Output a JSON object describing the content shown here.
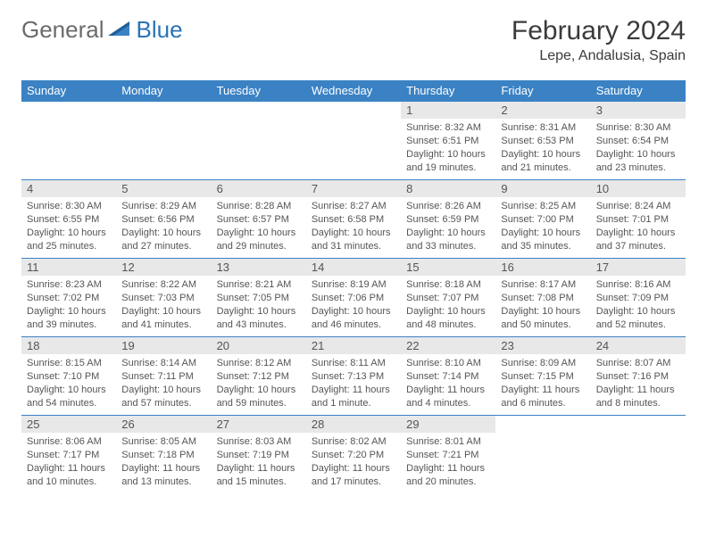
{
  "brand": {
    "part1": "General",
    "part2": "Blue"
  },
  "title": "February 2024",
  "location": "Lepe, Andalusia, Spain",
  "style": {
    "header_bg": "#3b82c4",
    "header_text": "#ffffff",
    "daynum_bg": "#e8e8e8",
    "text_color": "#555555",
    "border_color": "#3b82c4",
    "title_fontsize": 30,
    "location_fontsize": 16,
    "header_fontsize": 13,
    "body_fontsize": 11
  },
  "weekdays": [
    "Sunday",
    "Monday",
    "Tuesday",
    "Wednesday",
    "Thursday",
    "Friday",
    "Saturday"
  ],
  "weeks": [
    [
      null,
      null,
      null,
      null,
      {
        "n": "1",
        "sr": "Sunrise: 8:32 AM",
        "ss": "Sunset: 6:51 PM",
        "dl": "Daylight: 10 hours and 19 minutes."
      },
      {
        "n": "2",
        "sr": "Sunrise: 8:31 AM",
        "ss": "Sunset: 6:53 PM",
        "dl": "Daylight: 10 hours and 21 minutes."
      },
      {
        "n": "3",
        "sr": "Sunrise: 8:30 AM",
        "ss": "Sunset: 6:54 PM",
        "dl": "Daylight: 10 hours and 23 minutes."
      }
    ],
    [
      {
        "n": "4",
        "sr": "Sunrise: 8:30 AM",
        "ss": "Sunset: 6:55 PM",
        "dl": "Daylight: 10 hours and 25 minutes."
      },
      {
        "n": "5",
        "sr": "Sunrise: 8:29 AM",
        "ss": "Sunset: 6:56 PM",
        "dl": "Daylight: 10 hours and 27 minutes."
      },
      {
        "n": "6",
        "sr": "Sunrise: 8:28 AM",
        "ss": "Sunset: 6:57 PM",
        "dl": "Daylight: 10 hours and 29 minutes."
      },
      {
        "n": "7",
        "sr": "Sunrise: 8:27 AM",
        "ss": "Sunset: 6:58 PM",
        "dl": "Daylight: 10 hours and 31 minutes."
      },
      {
        "n": "8",
        "sr": "Sunrise: 8:26 AM",
        "ss": "Sunset: 6:59 PM",
        "dl": "Daylight: 10 hours and 33 minutes."
      },
      {
        "n": "9",
        "sr": "Sunrise: 8:25 AM",
        "ss": "Sunset: 7:00 PM",
        "dl": "Daylight: 10 hours and 35 minutes."
      },
      {
        "n": "10",
        "sr": "Sunrise: 8:24 AM",
        "ss": "Sunset: 7:01 PM",
        "dl": "Daylight: 10 hours and 37 minutes."
      }
    ],
    [
      {
        "n": "11",
        "sr": "Sunrise: 8:23 AM",
        "ss": "Sunset: 7:02 PM",
        "dl": "Daylight: 10 hours and 39 minutes."
      },
      {
        "n": "12",
        "sr": "Sunrise: 8:22 AM",
        "ss": "Sunset: 7:03 PM",
        "dl": "Daylight: 10 hours and 41 minutes."
      },
      {
        "n": "13",
        "sr": "Sunrise: 8:21 AM",
        "ss": "Sunset: 7:05 PM",
        "dl": "Daylight: 10 hours and 43 minutes."
      },
      {
        "n": "14",
        "sr": "Sunrise: 8:19 AM",
        "ss": "Sunset: 7:06 PM",
        "dl": "Daylight: 10 hours and 46 minutes."
      },
      {
        "n": "15",
        "sr": "Sunrise: 8:18 AM",
        "ss": "Sunset: 7:07 PM",
        "dl": "Daylight: 10 hours and 48 minutes."
      },
      {
        "n": "16",
        "sr": "Sunrise: 8:17 AM",
        "ss": "Sunset: 7:08 PM",
        "dl": "Daylight: 10 hours and 50 minutes."
      },
      {
        "n": "17",
        "sr": "Sunrise: 8:16 AM",
        "ss": "Sunset: 7:09 PM",
        "dl": "Daylight: 10 hours and 52 minutes."
      }
    ],
    [
      {
        "n": "18",
        "sr": "Sunrise: 8:15 AM",
        "ss": "Sunset: 7:10 PM",
        "dl": "Daylight: 10 hours and 54 minutes."
      },
      {
        "n": "19",
        "sr": "Sunrise: 8:14 AM",
        "ss": "Sunset: 7:11 PM",
        "dl": "Daylight: 10 hours and 57 minutes."
      },
      {
        "n": "20",
        "sr": "Sunrise: 8:12 AM",
        "ss": "Sunset: 7:12 PM",
        "dl": "Daylight: 10 hours and 59 minutes."
      },
      {
        "n": "21",
        "sr": "Sunrise: 8:11 AM",
        "ss": "Sunset: 7:13 PM",
        "dl": "Daylight: 11 hours and 1 minute."
      },
      {
        "n": "22",
        "sr": "Sunrise: 8:10 AM",
        "ss": "Sunset: 7:14 PM",
        "dl": "Daylight: 11 hours and 4 minutes."
      },
      {
        "n": "23",
        "sr": "Sunrise: 8:09 AM",
        "ss": "Sunset: 7:15 PM",
        "dl": "Daylight: 11 hours and 6 minutes."
      },
      {
        "n": "24",
        "sr": "Sunrise: 8:07 AM",
        "ss": "Sunset: 7:16 PM",
        "dl": "Daylight: 11 hours and 8 minutes."
      }
    ],
    [
      {
        "n": "25",
        "sr": "Sunrise: 8:06 AM",
        "ss": "Sunset: 7:17 PM",
        "dl": "Daylight: 11 hours and 10 minutes."
      },
      {
        "n": "26",
        "sr": "Sunrise: 8:05 AM",
        "ss": "Sunset: 7:18 PM",
        "dl": "Daylight: 11 hours and 13 minutes."
      },
      {
        "n": "27",
        "sr": "Sunrise: 8:03 AM",
        "ss": "Sunset: 7:19 PM",
        "dl": "Daylight: 11 hours and 15 minutes."
      },
      {
        "n": "28",
        "sr": "Sunrise: 8:02 AM",
        "ss": "Sunset: 7:20 PM",
        "dl": "Daylight: 11 hours and 17 minutes."
      },
      {
        "n": "29",
        "sr": "Sunrise: 8:01 AM",
        "ss": "Sunset: 7:21 PM",
        "dl": "Daylight: 11 hours and 20 minutes."
      },
      null,
      null
    ]
  ]
}
